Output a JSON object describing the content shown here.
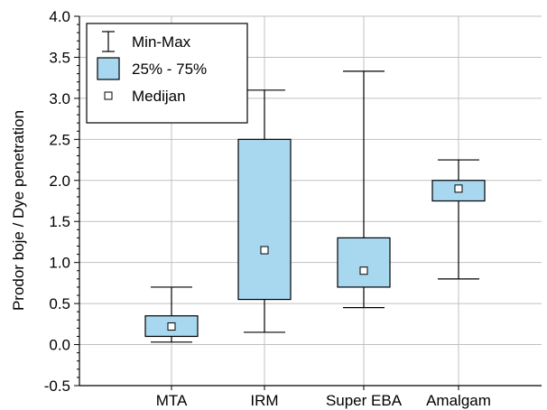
{
  "chart_data": {
    "type": "box",
    "categories": [
      "MTA",
      "IRM",
      "Super EBA",
      "Amalgam"
    ],
    "series": [
      {
        "category": "MTA",
        "min": 0.03,
        "q1": 0.1,
        "median": 0.22,
        "q3": 0.35,
        "max": 0.7
      },
      {
        "category": "IRM",
        "min": 0.15,
        "q1": 0.55,
        "median": 1.15,
        "q3": 2.5,
        "max": 3.1
      },
      {
        "category": "Super EBA",
        "min": 0.45,
        "q1": 0.7,
        "median": 0.9,
        "q3": 1.3,
        "max": 3.33
      },
      {
        "category": "Amalgam",
        "min": 0.8,
        "q1": 1.75,
        "median": 1.9,
        "q3": 2.0,
        "max": 2.25
      }
    ],
    "ylabel": "Prodor boje / Dye penetration",
    "xlabel": "",
    "ylim": [
      -0.5,
      4.0
    ],
    "yticks": [
      "-0.5",
      "0.0",
      "0.5",
      "1.0",
      "1.5",
      "2.0",
      "2.5",
      "3.0",
      "3.5",
      "4.0"
    ],
    "grid": true,
    "legend": {
      "placement": "top-left",
      "items": [
        {
          "label": "Min-Max",
          "symbol": "whisker"
        },
        {
          "label": "25% - 75%",
          "symbol": "box"
        },
        {
          "label": "Medijan",
          "symbol": "median"
        }
      ]
    },
    "colors": {
      "box_fill": "#a8d8f0",
      "stroke": "#000000",
      "grid": "#c0c0c0",
      "median_fill": "#ffffff"
    }
  }
}
